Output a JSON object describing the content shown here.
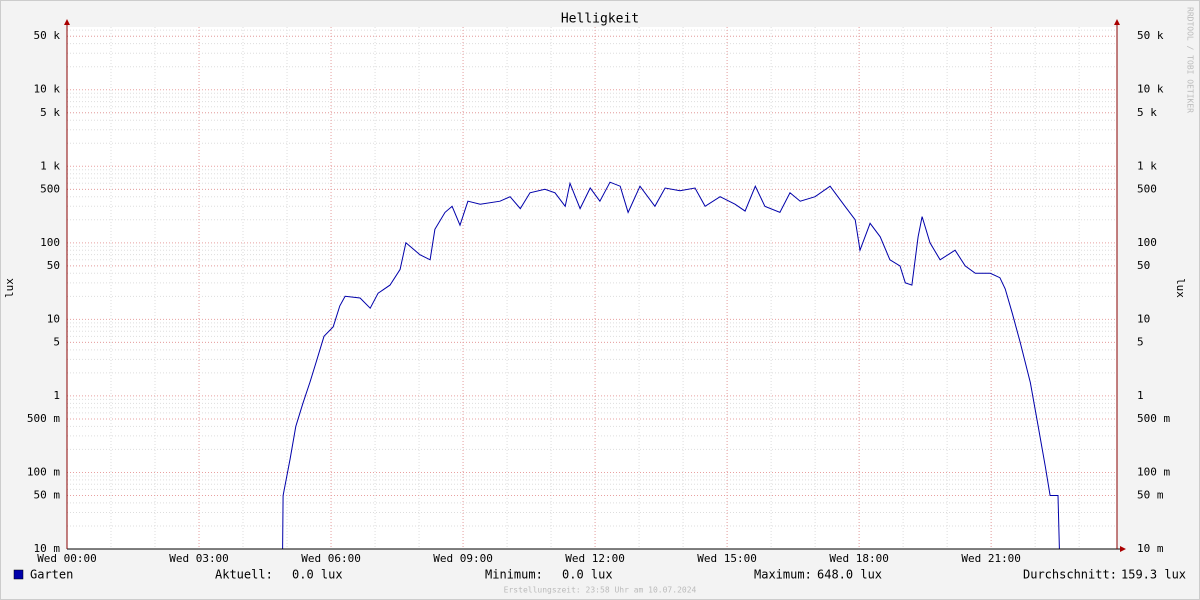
{
  "chart_data": {
    "type": "line",
    "title": "Helligkeit",
    "y_label": "lux",
    "log_scale": true,
    "grid": true,
    "xlim": [
      0,
      23.86
    ],
    "xticks": [
      {
        "value": 0,
        "label": "Wed 00:00"
      },
      {
        "value": 3,
        "label": "Wed 03:00"
      },
      {
        "value": 6,
        "label": "Wed 06:00"
      },
      {
        "value": 9,
        "label": "Wed 09:00"
      },
      {
        "value": 12,
        "label": "Wed 12:00"
      },
      {
        "value": 15,
        "label": "Wed 15:00"
      },
      {
        "value": 18,
        "label": "Wed 18:00"
      },
      {
        "value": 21,
        "label": "Wed 21:00"
      }
    ],
    "ylim": [
      0.01,
      66000
    ],
    "yticks": [
      {
        "value": 50000,
        "label": "50 k"
      },
      {
        "value": 10000,
        "label": "10 k"
      },
      {
        "value": 5000,
        "label": "5 k"
      },
      {
        "value": 1000,
        "label": "1 k"
      },
      500,
      100,
      50,
      10,
      5,
      1,
      {
        "value": 0.5,
        "label": "500 m"
      },
      {
        "value": 0.1,
        "label": "100 m"
      },
      {
        "value": 0.05,
        "label": "50 m"
      },
      {
        "value": 0.01,
        "label": "10 m"
      }
    ],
    "x": [
      0,
      4.9,
      4.91,
      5.07,
      5.2,
      5.36,
      5.52,
      5.68,
      5.84,
      6.05,
      6.2,
      6.32,
      6.66,
      6.89,
      7.07,
      7.34,
      7.57,
      7.7,
      7.9,
      8.02,
      8.25,
      8.36,
      8.59,
      8.75,
      8.93,
      9.11,
      9.39,
      9.84,
      10.07,
      10.3,
      10.52,
      10.86,
      11.09,
      11.32,
      11.43,
      11.66,
      11.89,
      12.11,
      12.34,
      12.57,
      12.75,
      13.02,
      13.36,
      13.59,
      13.93,
      14.27,
      14.5,
      14.84,
      15.18,
      15.41,
      15.64,
      15.86,
      16.2,
      16.43,
      16.66,
      17.0,
      17.34,
      17.68,
      17.91,
      18.02,
      18.25,
      18.48,
      18.7,
      18.93,
      19.05,
      19.2,
      19.34,
      19.43,
      19.61,
      19.84,
      20.18,
      20.41,
      20.64,
      20.98,
      21.2,
      21.32,
      21.48,
      21.66,
      21.89,
      22.07,
      22.23,
      22.34,
      22.52,
      22.55,
      23.86
    ],
    "series": [
      {
        "name": "Garten",
        "color": "#0000aa",
        "values": [
          0.01,
          0.01,
          0.05,
          0.15,
          0.4,
          0.8,
          1.5,
          3,
          6,
          8,
          15,
          20,
          19,
          14,
          22,
          28,
          45,
          100,
          80,
          70,
          60,
          150,
          250,
          300,
          170,
          350,
          320,
          350,
          400,
          280,
          450,
          500,
          450,
          300,
          600,
          280,
          520,
          350,
          620,
          550,
          250,
          550,
          300,
          520,
          480,
          520,
          300,
          400,
          320,
          260,
          550,
          300,
          250,
          450,
          350,
          400,
          550,
          300,
          200,
          80,
          180,
          120,
          60,
          50,
          30,
          28,
          120,
          220,
          100,
          60,
          80,
          50,
          40,
          40,
          35,
          25,
          12,
          5,
          1.5,
          0.4,
          0.12,
          0.05,
          0.05,
          0.01,
          0.01
        ]
      }
    ],
    "legend_stats": [
      {
        "label": "Aktuell:",
        "value": "0.0 lux"
      },
      {
        "label": "Minimum:",
        "value": "0.0 lux"
      },
      {
        "label": "Maximum:",
        "value": "648.0 lux"
      },
      {
        "label": "Durchschnitt:",
        "value": "159.3 lux"
      }
    ],
    "footer": "Erstellungszeit: 23:58 Uhr am 10.07.2024",
    "watermark": "RRDTOOL / TOBI OETIKER"
  }
}
